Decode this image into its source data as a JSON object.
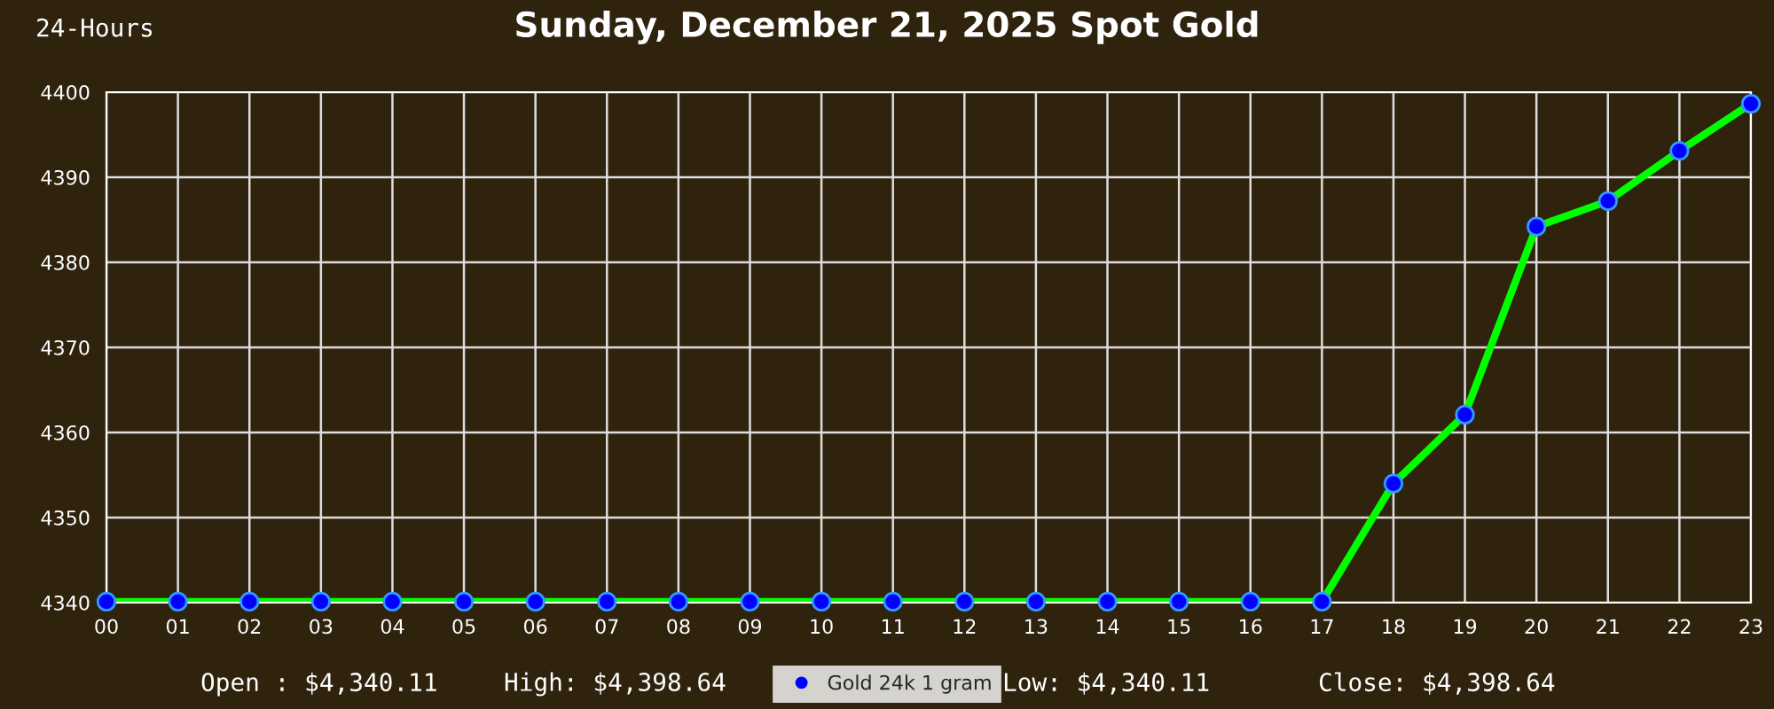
{
  "chart_data": {
    "type": "line",
    "title": "Sunday, December 21, 2025 Spot Gold",
    "annotations": [
      "24-Hours",
      "Open : $4,340.11",
      "High: $4,398.64",
      "Low: $4,340.11",
      "Close: $4,398.64"
    ],
    "x": [
      0,
      1,
      2,
      3,
      4,
      5,
      6,
      7,
      8,
      9,
      10,
      11,
      12,
      13,
      14,
      15,
      16,
      17,
      18,
      19,
      20,
      21,
      22,
      23
    ],
    "series": [
      {
        "name": "Gold 24k 1 gram",
        "color": "#0000ff",
        "values": [
          4340.11,
          4340.11,
          4340.11,
          4340.11,
          4340.11,
          4340.11,
          4340.11,
          4340.11,
          4340.11,
          4340.11,
          4340.11,
          4340.11,
          4340.11,
          4340.11,
          4340.11,
          4340.11,
          4340.11,
          4340.11,
          4354,
          4362.1,
          4384.2,
          4387.2,
          4393.1,
          4398.64
        ]
      }
    ],
    "xlim": [
      0,
      23
    ],
    "xticks": [
      {
        "value": 0,
        "label": "00"
      },
      {
        "value": 1,
        "label": "01"
      },
      {
        "value": 2,
        "label": "02"
      },
      {
        "value": 3,
        "label": "03"
      },
      {
        "value": 4,
        "label": "04"
      },
      {
        "value": 5,
        "label": "05"
      },
      {
        "value": 6,
        "label": "06"
      },
      {
        "value": 7,
        "label": "07"
      },
      {
        "value": 8,
        "label": "08"
      },
      {
        "value": 9,
        "label": "09"
      },
      {
        "value": 10,
        "label": "10"
      },
      {
        "value": 11,
        "label": "11"
      },
      {
        "value": 12,
        "label": "12"
      },
      {
        "value": 13,
        "label": "13"
      },
      {
        "value": 14,
        "label": "14"
      },
      {
        "value": 15,
        "label": "15"
      },
      {
        "value": 16,
        "label": "16"
      },
      {
        "value": 17,
        "label": "17"
      },
      {
        "value": 18,
        "label": "18"
      },
      {
        "value": 19,
        "label": "19"
      },
      {
        "value": 20,
        "label": "20"
      },
      {
        "value": 21,
        "label": "21"
      },
      {
        "value": 22,
        "label": "22"
      },
      {
        "value": 23,
        "label": "23"
      }
    ],
    "ylim": [
      4340,
      4400
    ],
    "yticks": [
      4340,
      4350,
      4360,
      4370,
      4380,
      4390,
      4400
    ],
    "grid": true,
    "legend": "bottom",
    "marker": "circle",
    "line_style": "solid"
  }
}
